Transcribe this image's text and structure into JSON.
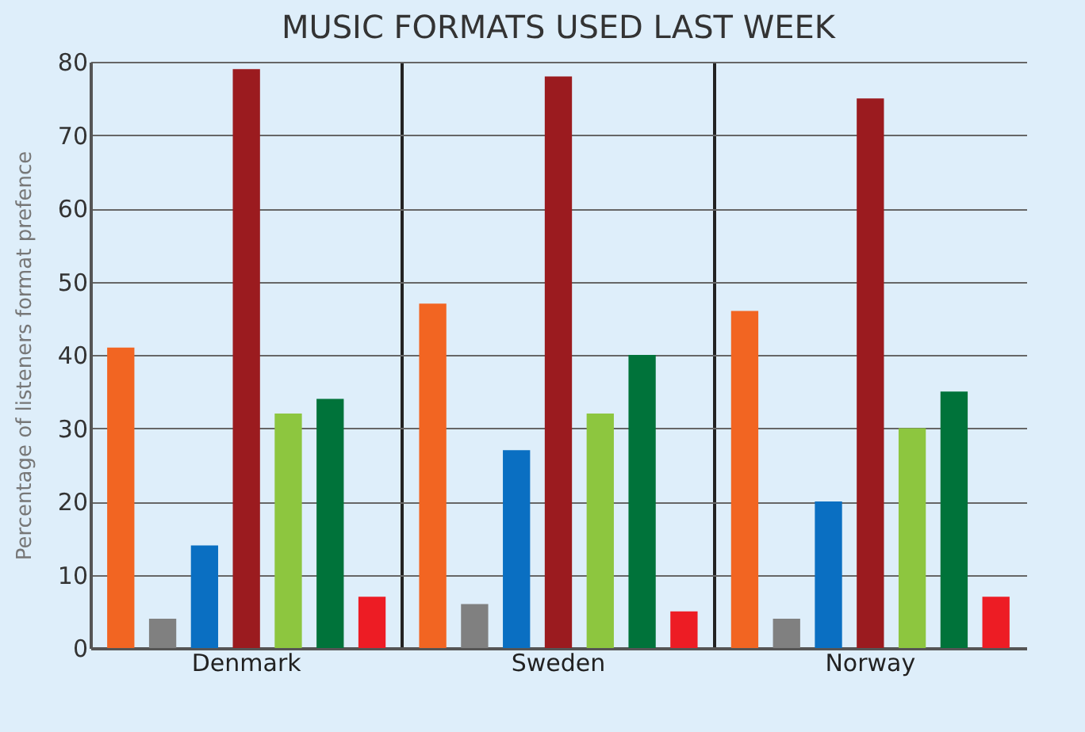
{
  "chart_data": {
    "type": "bar",
    "title": "MUSIC FORMATS USED LAST WEEK",
    "ylabel": "Percentage of listeners format prefence",
    "categories": [
      "Denmark",
      "Sweden",
      "Norway"
    ],
    "series": [
      {
        "color": "#f26522",
        "values": [
          41,
          47,
          46
        ]
      },
      {
        "color": "#808080",
        "values": [
          4,
          6,
          4
        ]
      },
      {
        "color": "#0a6fc2",
        "values": [
          14,
          27,
          20
        ]
      },
      {
        "color": "#9b1b1f",
        "values": [
          79,
          78,
          75
        ]
      },
      {
        "color": "#8dc63f",
        "values": [
          32,
          32,
          30
        ]
      },
      {
        "color": "#00733a",
        "values": [
          34,
          40,
          35
        ]
      },
      {
        "color": "#ed1c24",
        "values": [
          7,
          5,
          7
        ]
      }
    ],
    "ylim": [
      0,
      80
    ],
    "yticks": [
      0,
      10,
      20,
      30,
      40,
      50,
      60,
      70,
      80
    ],
    "grid": "y",
    "legend": false
  }
}
